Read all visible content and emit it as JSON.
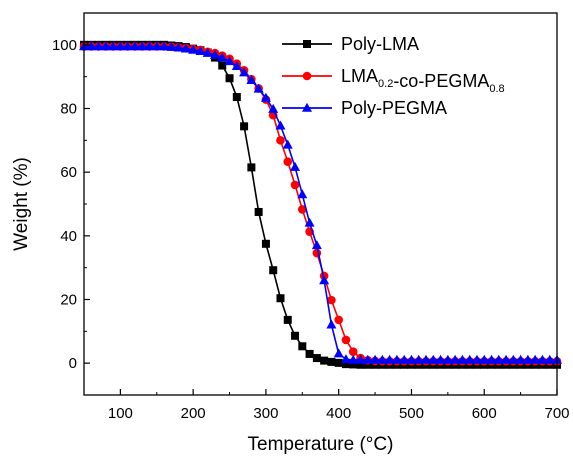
{
  "chart_data": {
    "type": "line",
    "xlabel": "Temperature (°C)",
    "ylabel": "Weight (%)",
    "xlim": [
      50,
      700
    ],
    "ylim": [
      -10,
      110
    ],
    "xticks": [
      100,
      200,
      300,
      400,
      500,
      600,
      700
    ],
    "yticks": [
      0,
      20,
      40,
      60,
      80,
      100
    ],
    "legend_position": "top-right",
    "series": [
      {
        "name": "Poly-LMA",
        "legend_parts": [
          {
            "text": "Poly-LMA",
            "sub": ""
          }
        ],
        "color": "#000000",
        "marker": "square",
        "x": [
          50,
          60,
          70,
          80,
          90,
          100,
          110,
          120,
          130,
          140,
          150,
          160,
          170,
          180,
          190,
          200,
          210,
          220,
          230,
          240,
          250,
          260,
          270,
          280,
          290,
          300,
          310,
          320,
          330,
          340,
          350,
          360,
          370,
          380,
          390,
          400,
          410,
          420,
          430,
          440,
          450,
          460,
          470,
          480,
          490,
          500,
          510,
          520,
          530,
          540,
          550,
          560,
          570,
          580,
          590,
          600,
          610,
          620,
          630,
          640,
          650,
          660,
          670,
          680,
          690,
          700
        ],
        "y": [
          100,
          100,
          100,
          100,
          100,
          100,
          100,
          100,
          100,
          100,
          100,
          100,
          99.8,
          99.6,
          99.3,
          98.8,
          98.3,
          97.6,
          96,
          93.5,
          89.5,
          83.6,
          74.4,
          61.5,
          47.5,
          37.5,
          29.2,
          20.4,
          13.6,
          8.6,
          5.3,
          2.9,
          1.6,
          0.8,
          0.4,
          0.1,
          -0.3,
          -0.4,
          -0.5,
          -0.5,
          -0.5,
          -0.5,
          -0.5,
          -0.5,
          -0.5,
          -0.5,
          -0.5,
          -0.5,
          -0.5,
          -0.5,
          -0.5,
          -0.5,
          -0.5,
          -0.5,
          -0.5,
          -0.5,
          -0.5,
          -0.5,
          -0.5,
          -0.5,
          -0.5,
          -0.5,
          -0.5,
          -0.5,
          -0.5,
          -0.5
        ]
      },
      {
        "name": "LMA0.2-co-PEGMA0.8",
        "legend_parts": [
          {
            "text": "LMA",
            "sub": "0.2"
          },
          {
            "text": "-co-PEGMA",
            "sub": "0.8"
          }
        ],
        "color": "#ff0000",
        "marker": "circle",
        "x": [
          50,
          60,
          70,
          80,
          90,
          100,
          110,
          120,
          130,
          140,
          150,
          160,
          170,
          180,
          190,
          200,
          210,
          220,
          230,
          240,
          250,
          260,
          270,
          280,
          290,
          300,
          310,
          320,
          330,
          340,
          350,
          360,
          370,
          380,
          390,
          400,
          410,
          420,
          430,
          440,
          450,
          460,
          470,
          480,
          490,
          500,
          510,
          520,
          530,
          540,
          550,
          560,
          570,
          580,
          590,
          600,
          610,
          620,
          630,
          640,
          650,
          660,
          670,
          680,
          690,
          700
        ],
        "y": [
          99.5,
          99.5,
          99.5,
          99.5,
          99.5,
          99.5,
          99.5,
          99.5,
          99.5,
          99.5,
          99.5,
          99.5,
          99.4,
          99.2,
          99,
          98.7,
          98.4,
          97.8,
          97.4,
          96.6,
          95.6,
          94.1,
          92,
          89.2,
          86.3,
          82.8,
          77.9,
          70,
          63.3,
          56,
          48.3,
          41.3,
          34.6,
          27.4,
          19.8,
          13.6,
          7.3,
          3.6,
          1.6,
          0.9,
          0.7,
          0.6,
          0.6,
          0.6,
          0.6,
          0.6,
          0.6,
          0.6,
          0.6,
          0.6,
          0.6,
          0.6,
          0.6,
          0.6,
          0.6,
          0.6,
          0.6,
          0.6,
          0.6,
          0.6,
          0.6,
          0.6,
          0.6,
          0.6,
          0.6,
          0.6
        ]
      },
      {
        "name": "Poly-PEGMA",
        "legend_parts": [
          {
            "text": "Poly-PEGMA",
            "sub": ""
          }
        ],
        "color": "#0000ff",
        "marker": "triangle",
        "x": [
          50,
          60,
          70,
          80,
          90,
          100,
          110,
          120,
          130,
          140,
          150,
          160,
          170,
          180,
          190,
          200,
          210,
          220,
          230,
          240,
          250,
          260,
          270,
          280,
          290,
          300,
          310,
          320,
          330,
          340,
          350,
          360,
          370,
          380,
          390,
          400,
          410,
          420,
          430,
          440,
          450,
          460,
          470,
          480,
          490,
          500,
          510,
          520,
          530,
          540,
          550,
          560,
          570,
          580,
          590,
          600,
          610,
          620,
          630,
          640,
          650,
          660,
          670,
          680,
          690,
          700
        ],
        "y": [
          99.5,
          99.5,
          99.5,
          99.5,
          99.5,
          99.5,
          99.5,
          99.5,
          99.5,
          99.5,
          99.5,
          99.5,
          99.3,
          99.1,
          98.8,
          98.4,
          98,
          97.4,
          96.8,
          96,
          94.8,
          93.3,
          91.3,
          88.9,
          86.2,
          83.3,
          79.8,
          74.6,
          68.6,
          61.6,
          53,
          44.1,
          37,
          26,
          12.1,
          3,
          1.2,
          1,
          1,
          1,
          1,
          1,
          1,
          1,
          1,
          1,
          1,
          1,
          1,
          1,
          1,
          1,
          1,
          1,
          1,
          1,
          1,
          1,
          1,
          1,
          1,
          1,
          1,
          1,
          1,
          1
        ]
      }
    ]
  }
}
